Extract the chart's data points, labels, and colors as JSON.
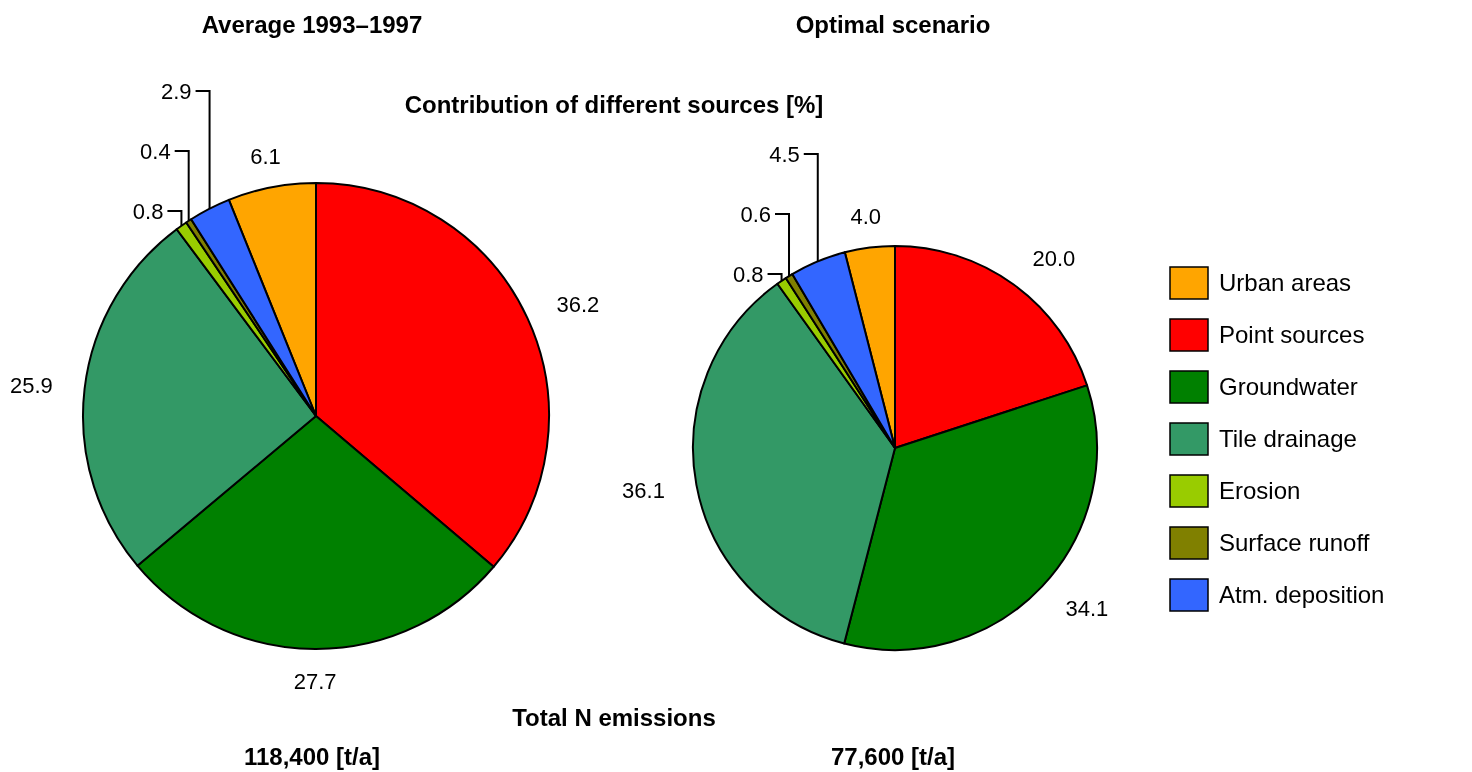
{
  "chart_data": {
    "type": "pie",
    "title": "Contribution of different sources [%]",
    "legend": "right",
    "annotations": [
      "Total N emissions",
      "118,400 [t/a]",
      "77,600 [t/a]"
    ],
    "categories": [
      "Urban areas",
      "Point sources",
      "Groundwater",
      "Tile drainage",
      "Erosion",
      "Surface runoff",
      "Atm. deposition"
    ],
    "colors": [
      "#ffa500",
      "#ff0000",
      "#008000",
      "#339966",
      "#99cc00",
      "#808000",
      "#3366ff"
    ],
    "series": [
      {
        "name": "Average 1993–1997",
        "values": [
          6.1,
          36.2,
          27.7,
          25.9,
          0.8,
          0.4,
          2.9
        ],
        "value_labels": [
          "6.1",
          "36.2",
          "27.7",
          "25.9",
          "0.8",
          "0.4",
          "2.9"
        ]
      },
      {
        "name": "Optimal scenario",
        "values": [
          4.0,
          20.0,
          34.1,
          36.1,
          0.8,
          0.6,
          4.5
        ],
        "value_labels": [
          "4.0",
          "20.0",
          "34.1",
          "36.1",
          "0.8",
          "0.6",
          "4.5"
        ]
      }
    ]
  }
}
